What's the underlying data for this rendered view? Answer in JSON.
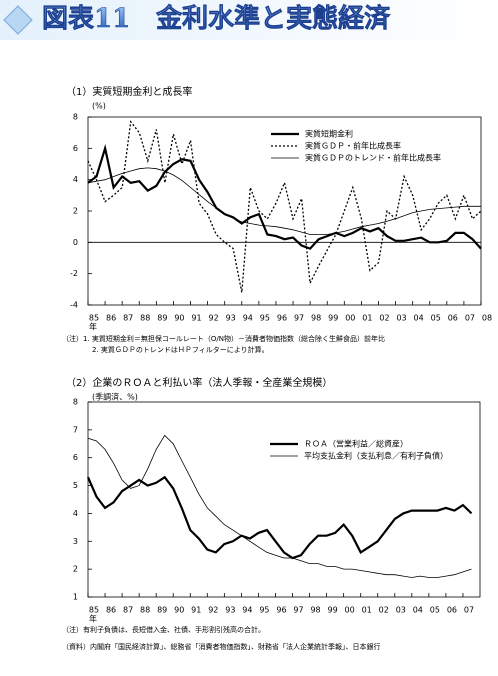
{
  "title": "図表11　金利水準と実態経済",
  "chart_data": [
    {
      "type": "line",
      "title": "（1）実質短期金利と成長率",
      "unit_label": "(%)",
      "year_label": "年",
      "x": [
        1985,
        1985.5,
        1986,
        1986.5,
        1987,
        1987.5,
        1988,
        1988.5,
        1989,
        1989.5,
        1990,
        1990.5,
        1991,
        1991.5,
        1992,
        1992.5,
        1993,
        1993.5,
        1994,
        1994.5,
        1995,
        1995.5,
        1996,
        1996.5,
        1997,
        1997.5,
        1998,
        1998.5,
        1999,
        1999.5,
        2000,
        2000.5,
        2001,
        2001.5,
        2002,
        2002.5,
        2003,
        2003.5,
        2004,
        2004.5,
        2005,
        2005.5,
        2006,
        2006.5,
        2007,
        2007.5,
        2008
      ],
      "series": [
        {
          "name": "実質短期金利",
          "color": "#000000",
          "line_style": "solid",
          "width": 2.2,
          "values": [
            3.8,
            4.2,
            6.0,
            3.5,
            4.2,
            3.8,
            3.9,
            3.3,
            3.6,
            4.5,
            5.0,
            5.3,
            5.2,
            4.0,
            3.2,
            2.2,
            1.8,
            1.6,
            1.2,
            1.6,
            1.8,
            0.5,
            0.4,
            0.2,
            0.3,
            -0.2,
            -0.4,
            0.2,
            0.4,
            0.6,
            0.4,
            0.6,
            0.9,
            0.7,
            0.9,
            0.4,
            0.1,
            0.1,
            0.2,
            0.3,
            0.0,
            0.0,
            0.1,
            0.6,
            0.6,
            0.2,
            -0.4
          ]
        },
        {
          "name": "実質ＧＤＰ・前年比成長率",
          "color": "#000000",
          "line_style": "dotted",
          "width": 1.3,
          "values": [
            5.2,
            4.0,
            2.6,
            3.0,
            3.5,
            7.7,
            7.0,
            5.2,
            7.2,
            3.8,
            6.9,
            5.0,
            6.5,
            2.5,
            1.8,
            0.5,
            0.0,
            -0.4,
            -3.2,
            3.5,
            2.0,
            1.5,
            2.5,
            3.8,
            1.5,
            2.8,
            -2.6,
            -1.5,
            -0.5,
            0.5,
            2.0,
            3.5,
            1.5,
            -1.8,
            -1.3,
            2.0,
            1.5,
            4.2,
            3.0,
            0.8,
            1.5,
            2.5,
            3.0,
            1.5,
            3.0,
            1.5,
            2.0
          ]
        },
        {
          "name": "実質ＧＤＰのトレンド・前年比成長率",
          "color": "#000000",
          "line_style": "solid",
          "width": 0.8,
          "values": [
            3.8,
            3.9,
            4.0,
            4.2,
            4.4,
            4.55,
            4.7,
            4.75,
            4.7,
            4.55,
            4.3,
            3.95,
            3.5,
            3.05,
            2.6,
            2.2,
            1.8,
            1.55,
            1.3,
            1.2,
            1.1,
            1.05,
            1.0,
            0.9,
            0.8,
            0.65,
            0.5,
            0.5,
            0.5,
            0.6,
            0.7,
            0.85,
            1.0,
            1.1,
            1.2,
            1.35,
            1.5,
            1.7,
            1.9,
            2.0,
            2.1,
            2.15,
            2.2,
            2.25,
            2.3,
            2.3,
            2.3
          ]
        }
      ],
      "xlim": [
        1985,
        2008
      ],
      "xticks": [
        {
          "value": 1985,
          "label": "85"
        },
        {
          "value": 1986,
          "label": "86"
        },
        {
          "value": 1987,
          "label": "87"
        },
        {
          "value": 1988,
          "label": "88"
        },
        {
          "value": 1989,
          "label": "89"
        },
        {
          "value": 1990,
          "label": "90"
        },
        {
          "value": 1991,
          "label": "91"
        },
        {
          "value": 1992,
          "label": "92"
        },
        {
          "value": 1993,
          "label": "93"
        },
        {
          "value": 1994,
          "label": "94"
        },
        {
          "value": 1995,
          "label": "95"
        },
        {
          "value": 1996,
          "label": "96"
        },
        {
          "value": 1997,
          "label": "97"
        },
        {
          "value": 1998,
          "label": "98"
        },
        {
          "value": 1999,
          "label": "99"
        },
        {
          "value": 2000,
          "label": "00"
        },
        {
          "value": 2001,
          "label": "01"
        },
        {
          "value": 2002,
          "label": "02"
        },
        {
          "value": 2003,
          "label": "03"
        },
        {
          "value": 2004,
          "label": "04"
        },
        {
          "value": 2005,
          "label": "05"
        },
        {
          "value": 2006,
          "label": "06"
        },
        {
          "value": 2007,
          "label": "07"
        },
        {
          "value": 2008,
          "label": "08"
        }
      ],
      "ylim": [
        -4,
        8
      ],
      "yticks": [
        -4,
        -2,
        0,
        2,
        4,
        6,
        8
      ],
      "hlines": [
        0
      ],
      "legend": "upper right",
      "notes": [
        "（注）1. 実質短期金利＝無担保コールレート（O/N物）－消費者物価指数（総合除く生鮮食品）前年比",
        "2. 実質ＧＤＰのトレンドはＨＰフィルターにより計算。"
      ]
    },
    {
      "type": "line",
      "title": "（2）企業のＲＯＡと利払い率（法人季報・全産業全規模）",
      "unit_label": "(季調済、%)",
      "year_label": "年",
      "x": [
        1985,
        1985.5,
        1986,
        1986.5,
        1987,
        1987.5,
        1988,
        1988.5,
        1989,
        1989.5,
        1990,
        1990.5,
        1991,
        1991.5,
        1992,
        1992.5,
        1993,
        1993.5,
        1994,
        1994.5,
        1995,
        1995.5,
        1996,
        1996.5,
        1997,
        1997.5,
        1998,
        1998.5,
        1999,
        1999.5,
        2000,
        2000.5,
        2001,
        2001.5,
        2002,
        2002.5,
        2003,
        2003.5,
        2004,
        2004.5,
        2005,
        2005.5,
        2006,
        2006.5,
        2007,
        2007.5
      ],
      "series": [
        {
          "name": "ＲＯＡ（営業利益／総資産）",
          "color": "#000000",
          "line_style": "solid",
          "width": 2.2,
          "values": [
            5.3,
            4.6,
            4.2,
            4.4,
            4.8,
            5.0,
            5.2,
            5.0,
            5.1,
            5.3,
            4.9,
            4.2,
            3.4,
            3.1,
            2.7,
            2.6,
            2.9,
            3.0,
            3.2,
            3.1,
            3.3,
            3.4,
            3.0,
            2.6,
            2.4,
            2.5,
            2.9,
            3.2,
            3.2,
            3.3,
            3.6,
            3.2,
            2.6,
            2.8,
            3.0,
            3.4,
            3.8,
            4.0,
            4.1,
            4.1,
            4.1,
            4.1,
            4.2,
            4.1,
            4.3,
            4.0
          ]
        },
        {
          "name": "平均支払金利（支払利息／有利子負債）",
          "color": "#000000",
          "line_style": "solid",
          "width": 0.8,
          "values": [
            6.7,
            6.6,
            6.3,
            5.8,
            5.2,
            4.9,
            5.0,
            5.6,
            6.3,
            6.8,
            6.5,
            5.9,
            5.3,
            4.7,
            4.2,
            3.9,
            3.6,
            3.4,
            3.2,
            3.0,
            2.8,
            2.6,
            2.5,
            2.4,
            2.4,
            2.3,
            2.2,
            2.2,
            2.1,
            2.1,
            2.0,
            2.0,
            1.95,
            1.9,
            1.85,
            1.8,
            1.8,
            1.75,
            1.7,
            1.75,
            1.7,
            1.7,
            1.75,
            1.8,
            1.9,
            2.0
          ]
        }
      ],
      "xlim": [
        1985,
        2008
      ],
      "xticks": [
        {
          "value": 1985,
          "label": "85"
        },
        {
          "value": 1986,
          "label": "86"
        },
        {
          "value": 1987,
          "label": "87"
        },
        {
          "value": 1988,
          "label": "88"
        },
        {
          "value": 1989,
          "label": "89"
        },
        {
          "value": 1990,
          "label": "90"
        },
        {
          "value": 1991,
          "label": "91"
        },
        {
          "value": 1992,
          "label": "92"
        },
        {
          "value": 1993,
          "label": "93"
        },
        {
          "value": 1994,
          "label": "94"
        },
        {
          "value": 1995,
          "label": "95"
        },
        {
          "value": 1996,
          "label": "96"
        },
        {
          "value": 1997,
          "label": "97"
        },
        {
          "value": 1998,
          "label": "98"
        },
        {
          "value": 1999,
          "label": "99"
        },
        {
          "value": 2000,
          "label": "00"
        },
        {
          "value": 2001,
          "label": "01"
        },
        {
          "value": 2002,
          "label": "02"
        },
        {
          "value": 2003,
          "label": "03"
        },
        {
          "value": 2004,
          "label": "04"
        },
        {
          "value": 2005,
          "label": "05"
        },
        {
          "value": 2006,
          "label": "06"
        },
        {
          "value": 2007,
          "label": "07"
        }
      ],
      "ylim": [
        1,
        8
      ],
      "yticks": [
        1,
        2,
        3,
        4,
        5,
        6,
        7,
        8
      ],
      "legend": "upper right",
      "notes": [
        "（注）有利子負債は、長短借入金、社債、手形割引残高の合計。",
        "（資料）内閣府「国民経済計算」、総務省「消費者物価指数」、財務省「法人企業統計季報」、日本銀行"
      ]
    }
  ]
}
